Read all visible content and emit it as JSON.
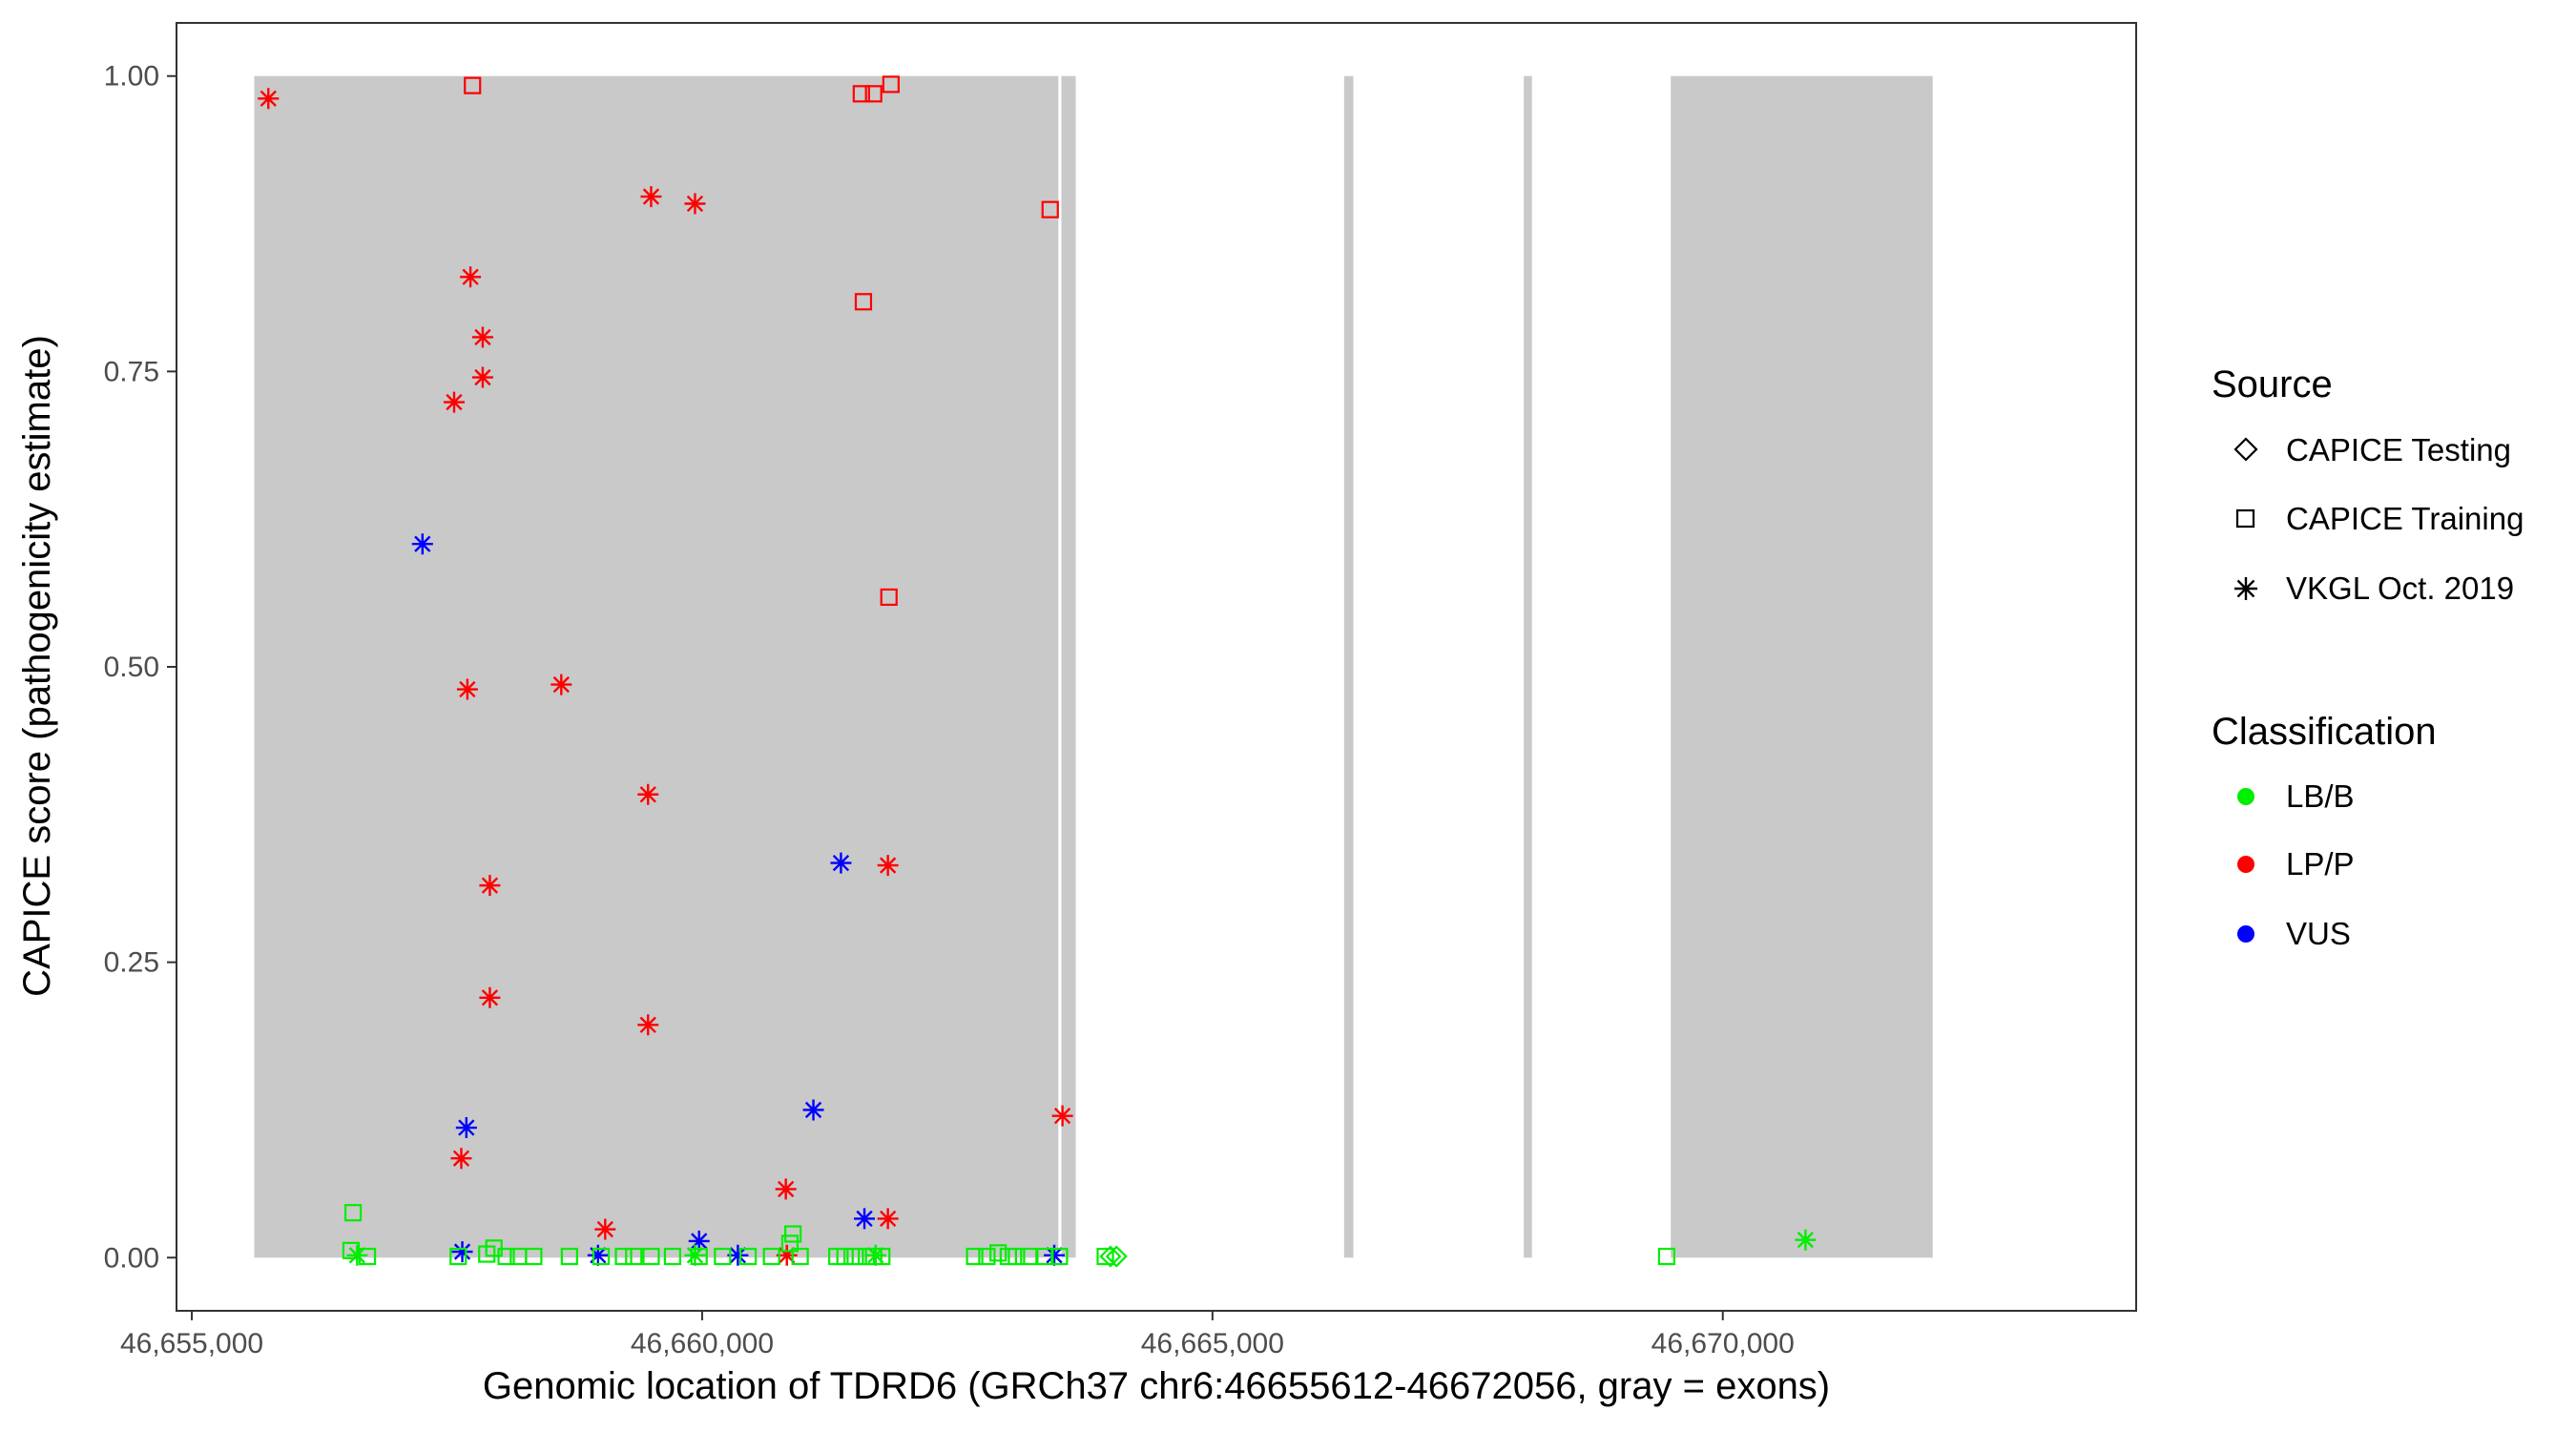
{
  "chart_data": {
    "type": "scatter",
    "xlabel": "Genomic location of TDRD6 (GRCh37 chr6:46655612-46672056, gray = exons)",
    "ylabel": "CAPICE score (pathogenicity estimate)",
    "xlim": [
      46654850,
      46674050
    ],
    "ylim": [
      -0.045,
      1.045
    ],
    "x_ticks": [
      46655000,
      46660000,
      46665000,
      46670000
    ],
    "x_tick_labels": [
      "46,655,000",
      "46,660,000",
      "46,665,000",
      "46,670,000"
    ],
    "y_ticks": [
      0,
      0.25,
      0.5,
      0.75,
      1
    ],
    "y_tick_labels": [
      "0.00",
      "0.25",
      "0.50",
      "0.75",
      "1.00"
    ],
    "grid": false,
    "legend_position": "right",
    "exons": [
      {
        "start": 46655612,
        "end": 46663490
      },
      {
        "start": 46663520,
        "end": 46663660
      },
      {
        "start": 46666290,
        "end": 46666380
      },
      {
        "start": 46668050,
        "end": 46668130
      },
      {
        "start": 46669490,
        "end": 46672056
      }
    ],
    "exon_color": "#c9c9c9",
    "legend": {
      "source": {
        "title": "Source",
        "items": [
          {
            "label": "CAPICE Testing",
            "shape": "diamond"
          },
          {
            "label": "CAPICE Training",
            "shape": "square"
          },
          {
            "label": "VKGL Oct. 2019",
            "shape": "asterisk"
          }
        ]
      },
      "classification": {
        "title": "Classification",
        "items": [
          {
            "label": "LB/B",
            "color": "#00ee00"
          },
          {
            "label": "LP/P",
            "color": "#ff0000"
          },
          {
            "label": "VUS",
            "color": "#0000ff"
          }
        ]
      }
    },
    "series": [
      {
        "source": "CAPICE Training",
        "classification": "LP/P",
        "points": [
          [
            46657750,
            0.992
          ],
          [
            46661560,
            0.985
          ],
          [
            46661680,
            0.985
          ],
          [
            46661850,
            0.993
          ],
          [
            46663410,
            0.887
          ],
          [
            46661580,
            0.809
          ],
          [
            46661830,
            0.559
          ]
        ]
      },
      {
        "source": "VKGL Oct. 2019",
        "classification": "LP/P",
        "points": [
          [
            46655750,
            0.981
          ],
          [
            46659500,
            0.898
          ],
          [
            46659930,
            0.892
          ],
          [
            46657730,
            0.83
          ],
          [
            46657850,
            0.779
          ],
          [
            46657850,
            0.745
          ],
          [
            46657570,
            0.724
          ],
          [
            46657700,
            0.481
          ],
          [
            46658620,
            0.485
          ],
          [
            46659470,
            0.392
          ],
          [
            46657920,
            0.315
          ],
          [
            46657920,
            0.22
          ],
          [
            46659470,
            0.197
          ],
          [
            46661820,
            0.332
          ],
          [
            46663530,
            0.12
          ],
          [
            46657640,
            0.084
          ],
          [
            46660820,
            0.058
          ],
          [
            46659050,
            0.024
          ],
          [
            46661820,
            0.033
          ],
          [
            46660830,
            0.002
          ]
        ]
      },
      {
        "source": "VKGL Oct. 2019",
        "classification": "VUS",
        "points": [
          [
            46657260,
            0.604
          ],
          [
            46661360,
            0.334
          ],
          [
            46657690,
            0.11
          ],
          [
            46661090,
            0.125
          ],
          [
            46661590,
            0.033
          ],
          [
            46659970,
            0.014
          ],
          [
            46657650,
            0.005
          ],
          [
            46658980,
            0.002
          ],
          [
            46660350,
            0.002
          ],
          [
            46663450,
            0.002
          ]
        ]
      },
      {
        "source": "VKGL Oct. 2019",
        "classification": "LB/B",
        "points": [
          [
            46670810,
            0.015
          ],
          [
            46656620,
            0.002
          ],
          [
            46659930,
            0.002
          ],
          [
            46661700,
            0.002
          ]
        ]
      },
      {
        "source": "CAPICE Training",
        "classification": "LB/B",
        "points": [
          [
            46656580,
            0.038
          ],
          [
            46656560,
            0.006
          ],
          [
            46656720,
            0.001
          ],
          [
            46657610,
            0.001
          ],
          [
            46657890,
            0.003
          ],
          [
            46657960,
            0.008
          ],
          [
            46658080,
            0.001
          ],
          [
            46658200,
            0.001
          ],
          [
            46658350,
            0.001
          ],
          [
            46658700,
            0.001
          ],
          [
            46659010,
            0.001
          ],
          [
            46659230,
            0.001
          ],
          [
            46659330,
            0.001
          ],
          [
            46659500,
            0.001
          ],
          [
            46659710,
            0.001
          ],
          [
            46659970,
            0.001
          ],
          [
            46660200,
            0.001
          ],
          [
            46660450,
            0.001
          ],
          [
            46660680,
            0.001
          ],
          [
            46660890,
            0.02
          ],
          [
            46660860,
            0.012
          ],
          [
            46660960,
            0.001
          ],
          [
            46661320,
            0.001
          ],
          [
            46661400,
            0.001
          ],
          [
            46661500,
            0.001
          ],
          [
            46661610,
            0.001
          ],
          [
            46661680,
            0.001
          ],
          [
            46661760,
            0.001
          ],
          [
            46662670,
            0.001
          ],
          [
            46662790,
            0.001
          ],
          [
            46662900,
            0.004
          ],
          [
            46663000,
            0.001
          ],
          [
            46663080,
            0.001
          ],
          [
            46663200,
            0.001
          ],
          [
            46663360,
            0.001
          ],
          [
            46663500,
            0.001
          ],
          [
            46663950,
            0.001
          ],
          [
            46669450,
            0.001
          ]
        ]
      },
      {
        "source": "CAPICE Testing",
        "classification": "LB/B",
        "points": [
          [
            46664000,
            0.001
          ],
          [
            46664060,
            0.001
          ]
        ]
      }
    ]
  }
}
